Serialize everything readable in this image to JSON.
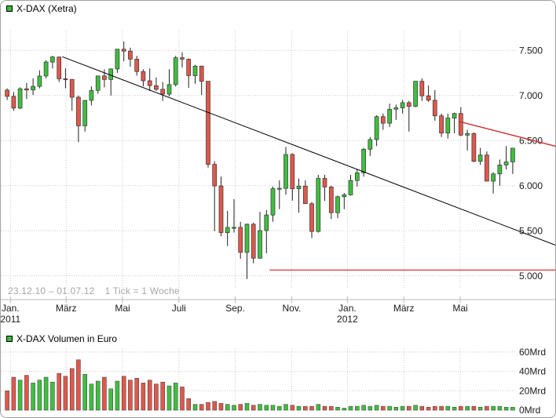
{
  "frame": {
    "background": "#ffffff",
    "border_color": "#a0a0a0"
  },
  "price_chart": {
    "legend_label": "X-DAX (Xetra)",
    "legend_color": "#3cb83c",
    "footer_range": "23.12.10 – 01.07.12",
    "footer_tick": "1 Tick = 1 Woche"
  },
  "volume_chart": {
    "legend_label": "X-DAX Volumen in Euro",
    "legend_color": "#3cb83c"
  },
  "chart_data": [
    {
      "type": "candlestick",
      "title": "X-DAX (Xetra)",
      "date_range": "23.12.10 – 01.07.12",
      "timeframe": "1 Tick = 1 Woche",
      "ylim": [
        4850,
        7720
      ],
      "grid": true,
      "up_color": "#3fbf3f",
      "down_color": "#e0584c",
      "y_ticks": [
        7500,
        7000,
        6500,
        6000,
        5500,
        5000
      ],
      "y_tick_labels": [
        "7.500",
        "7.000",
        "6.500",
        "6.000",
        "5.500",
        "5.000"
      ],
      "x_ticks": [
        {
          "week": 1.0,
          "label": "Jan.",
          "year": "2011"
        },
        {
          "week": 9.6,
          "label": "März"
        },
        {
          "week": 18.3,
          "label": "Mai"
        },
        {
          "week": 27.0,
          "label": "Juli"
        },
        {
          "week": 35.7,
          "label": "Sep."
        },
        {
          "week": 44.4,
          "label": "Nov."
        },
        {
          "week": 53.0,
          "label": "Jan.",
          "year": "2012"
        },
        {
          "week": 61.7,
          "label": "März"
        },
        {
          "week": 70.4,
          "label": "Mai"
        }
      ],
      "ohlc": [
        [
          7060,
          7080,
          6950,
          6990
        ],
        [
          6990,
          7040,
          6830,
          6860
        ],
        [
          6860,
          7090,
          6850,
          7075
        ],
        [
          7075,
          7140,
          6960,
          7062
        ],
        [
          7062,
          7190,
          7005,
          7102
        ],
        [
          7102,
          7280,
          7080,
          7216
        ],
        [
          7216,
          7390,
          7190,
          7371
        ],
        [
          7371,
          7441,
          7300,
          7427
        ],
        [
          7427,
          7430,
          7150,
          7185
        ],
        [
          7185,
          7300,
          7080,
          7179
        ],
        [
          7179,
          7180,
          6830,
          6981
        ],
        [
          6981,
          7000,
          6483,
          6664
        ],
        [
          6664,
          6950,
          6600,
          6946
        ],
        [
          6946,
          7100,
          6890,
          7057
        ],
        [
          7057,
          7220,
          7020,
          7217
        ],
        [
          7217,
          7290,
          7090,
          7178
        ],
        [
          7178,
          7300,
          7000,
          7295
        ],
        [
          7295,
          7514,
          7250,
          7514
        ],
        [
          7514,
          7600,
          7380,
          7492
        ],
        [
          7492,
          7530,
          7320,
          7403
        ],
        [
          7403,
          7440,
          7220,
          7266
        ],
        [
          7266,
          7290,
          7100,
          7163
        ],
        [
          7163,
          7300,
          7050,
          7109
        ],
        [
          7109,
          7200,
          7050,
          7069
        ],
        [
          7069,
          7150,
          6940,
          7016
        ],
        [
          7016,
          7290,
          6990,
          7121
        ],
        [
          7121,
          7440,
          7100,
          7419
        ],
        [
          7419,
          7480,
          7310,
          7403
        ],
        [
          7403,
          7410,
          7085,
          7220
        ],
        [
          7220,
          7340,
          7130,
          7326
        ],
        [
          7326,
          7330,
          7006,
          7158
        ],
        [
          7158,
          7160,
          6200,
          6236
        ],
        [
          6236,
          6270,
          5496,
          5997
        ],
        [
          5997,
          6100,
          5440,
          5480
        ],
        [
          5480,
          5720,
          5330,
          5537
        ],
        [
          5537,
          5850,
          5480,
          5538
        ],
        [
          5538,
          5600,
          5190,
          5261
        ],
        [
          5261,
          5580,
          4966,
          5573
        ],
        [
          5573,
          5590,
          5140,
          5196
        ],
        [
          5196,
          5710,
          5190,
          5502
        ],
        [
          5502,
          5730,
          5251,
          5675
        ],
        [
          5675,
          5990,
          5600,
          5967
        ],
        [
          5967,
          6060,
          5740,
          5971
        ],
        [
          5971,
          6430,
          5900,
          6346
        ],
        [
          6346,
          6360,
          5835,
          5966
        ],
        [
          5966,
          6080,
          5700,
          5995
        ],
        [
          5995,
          6060,
          5800,
          5800
        ],
        [
          5800,
          5820,
          5420,
          5493
        ],
        [
          5493,
          6120,
          5480,
          6081
        ],
        [
          6081,
          6120,
          5830,
          5986
        ],
        [
          5986,
          6000,
          5630,
          5701
        ],
        [
          5701,
          5890,
          5640,
          5878
        ],
        [
          5878,
          5920,
          5740,
          5898
        ],
        [
          5898,
          6120,
          5890,
          6058
        ],
        [
          6058,
          6180,
          5990,
          6143
        ],
        [
          6143,
          6420,
          6100,
          6404
        ],
        [
          6404,
          6540,
          6330,
          6512
        ],
        [
          6512,
          6780,
          6440,
          6766
        ],
        [
          6766,
          6800,
          6620,
          6693
        ],
        [
          6693,
          6910,
          6650,
          6848
        ],
        [
          6848,
          6900,
          6730,
          6864
        ],
        [
          6864,
          6950,
          6800,
          6921
        ],
        [
          6921,
          6940,
          6600,
          6880
        ],
        [
          6880,
          7160,
          6870,
          7158
        ],
        [
          7158,
          7190,
          6940,
          6996
        ],
        [
          6996,
          7110,
          6930,
          6947
        ],
        [
          6947,
          7060,
          6720,
          6775
        ],
        [
          6775,
          6800,
          6540,
          6584
        ],
        [
          6584,
          6800,
          6523,
          6750
        ],
        [
          6750,
          6810,
          6580,
          6801
        ],
        [
          6801,
          6870,
          6550,
          6561
        ],
        [
          6561,
          6620,
          6390,
          6579
        ],
        [
          6579,
          6590,
          6260,
          6271
        ],
        [
          6271,
          6420,
          6230,
          6340
        ],
        [
          6340,
          6380,
          6050,
          6050
        ],
        [
          6050,
          6150,
          5914,
          6130
        ],
        [
          6130,
          6290,
          6000,
          6229
        ],
        [
          6229,
          6440,
          6180,
          6263
        ],
        [
          6263,
          6420,
          6130,
          6416
        ]
      ],
      "trendlines": [
        {
          "name": "downtrend-major",
          "color": "#000000",
          "width": 1,
          "p1": {
            "week": 9.0,
            "value": 7430
          },
          "p2": {
            "week": 85.5,
            "value": 5330
          }
        },
        {
          "name": "support-5000",
          "color": "#cc0000",
          "width": 1,
          "p1": {
            "week": 41.0,
            "value": 5065
          },
          "p2": {
            "week": 85.5,
            "value": 5065
          }
        },
        {
          "name": "downtrend-recent",
          "color": "#cc3333",
          "width": 1.4,
          "p1": {
            "week": 70.3,
            "value": 6710
          },
          "p2": {
            "week": 85.5,
            "value": 6430
          }
        }
      ]
    },
    {
      "type": "bar",
      "title": "X-DAX Volumen in Euro",
      "unit": "Mrd",
      "ylim": [
        0,
        64
      ],
      "grid": true,
      "y_ticks": [
        60,
        40,
        20,
        0
      ],
      "y_tick_labels": [
        "60Mrd",
        "40Mrd",
        "20Mrd",
        "0Mrd"
      ],
      "values": [
        20,
        34,
        31,
        36,
        28,
        31,
        34,
        29,
        38,
        35,
        43,
        52,
        37,
        27,
        30,
        34,
        22,
        30,
        35,
        31,
        33,
        28,
        31,
        27,
        29,
        25,
        28,
        24,
        12,
        6,
        6,
        8,
        9,
        7,
        6,
        5,
        6,
        7,
        5,
        6,
        5,
        5,
        4,
        6,
        5,
        4,
        4,
        4,
        6,
        4,
        4,
        3,
        2,
        4,
        4,
        5,
        4,
        5,
        4,
        4,
        3,
        4,
        4,
        5,
        4,
        3,
        4,
        4,
        4,
        3,
        4,
        4,
        4,
        3,
        4,
        4,
        4,
        3,
        3
      ]
    }
  ]
}
